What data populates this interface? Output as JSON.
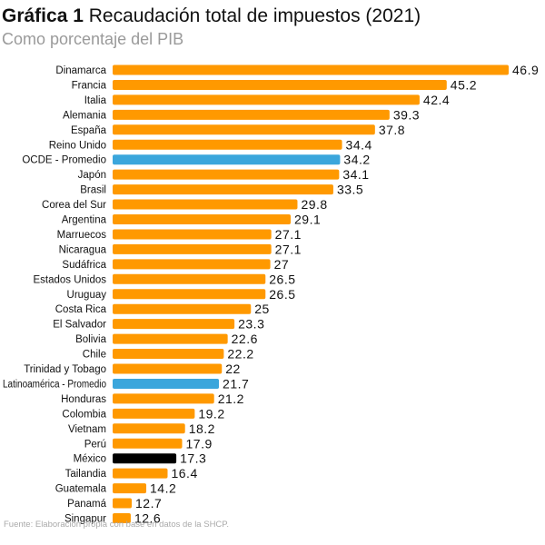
{
  "title_bold": "Gráfica 1",
  "title": "Recaudación total de impuestos (2021)",
  "subtitle": "Como porcentaje del PIB",
  "footer": "Fuente: Elaboración propia con base en datos de la SHCP.",
  "colors": {
    "default": "#ff9900",
    "average": "#3ba6dc",
    "highlight": "#000000",
    "highlight_label": "#f0962a",
    "average_label": "#3ba6dc"
  },
  "chart_data": {
    "type": "bar",
    "orientation": "horizontal",
    "grid": false,
    "categories": [
      "Dinamarca",
      "Francia",
      "Italia",
      "Alemania",
      "España",
      "Reino Unido",
      "OCDE - Promedio",
      "Japón",
      "Brasil",
      "Corea del Sur",
      "Argentina",
      "Marruecos",
      "Nicaragua",
      "Sudáfrica",
      "Estados Unidos",
      "Uruguay",
      "Costa Rica",
      "El Salvador",
      "Bolivia",
      "Chile",
      "Trinidad y Tobago",
      "Latinoamérica - Promedio",
      "Honduras",
      "Colombia",
      "Vietnam",
      "Perú",
      "México",
      "Tailandia",
      "Guatemala",
      "Panamá",
      "Singapur"
    ],
    "values": [
      46.9,
      45.2,
      42.4,
      39.3,
      37.8,
      34.4,
      34.2,
      34.1,
      33.5,
      29.8,
      29.1,
      27.1,
      27.1,
      27,
      26.5,
      26.5,
      25,
      23.3,
      22.6,
      22.2,
      22,
      21.7,
      21.2,
      19.2,
      18.2,
      17.9,
      17.3,
      16.4,
      14.2,
      12.7,
      12.6
    ],
    "labels": [
      "46.9",
      "45.2",
      "42.4",
      "39.3",
      "37.8",
      "34.4",
      "34.2",
      "34.1",
      "33.5",
      "29.8",
      "29.1",
      "27.1",
      "27.1",
      "27",
      "26.5",
      "26.5",
      "25",
      "23.3",
      "22.6",
      "22.2",
      "22",
      "21.7",
      "21.2",
      "19.2",
      "18.2",
      "17.9",
      "17.3",
      "16.4",
      "14.2",
      "12.7",
      "12.6"
    ],
    "average_categories": [
      "OCDE - Promedio",
      "Latinoamérica - Promedio"
    ],
    "highlight_category": "México"
  }
}
